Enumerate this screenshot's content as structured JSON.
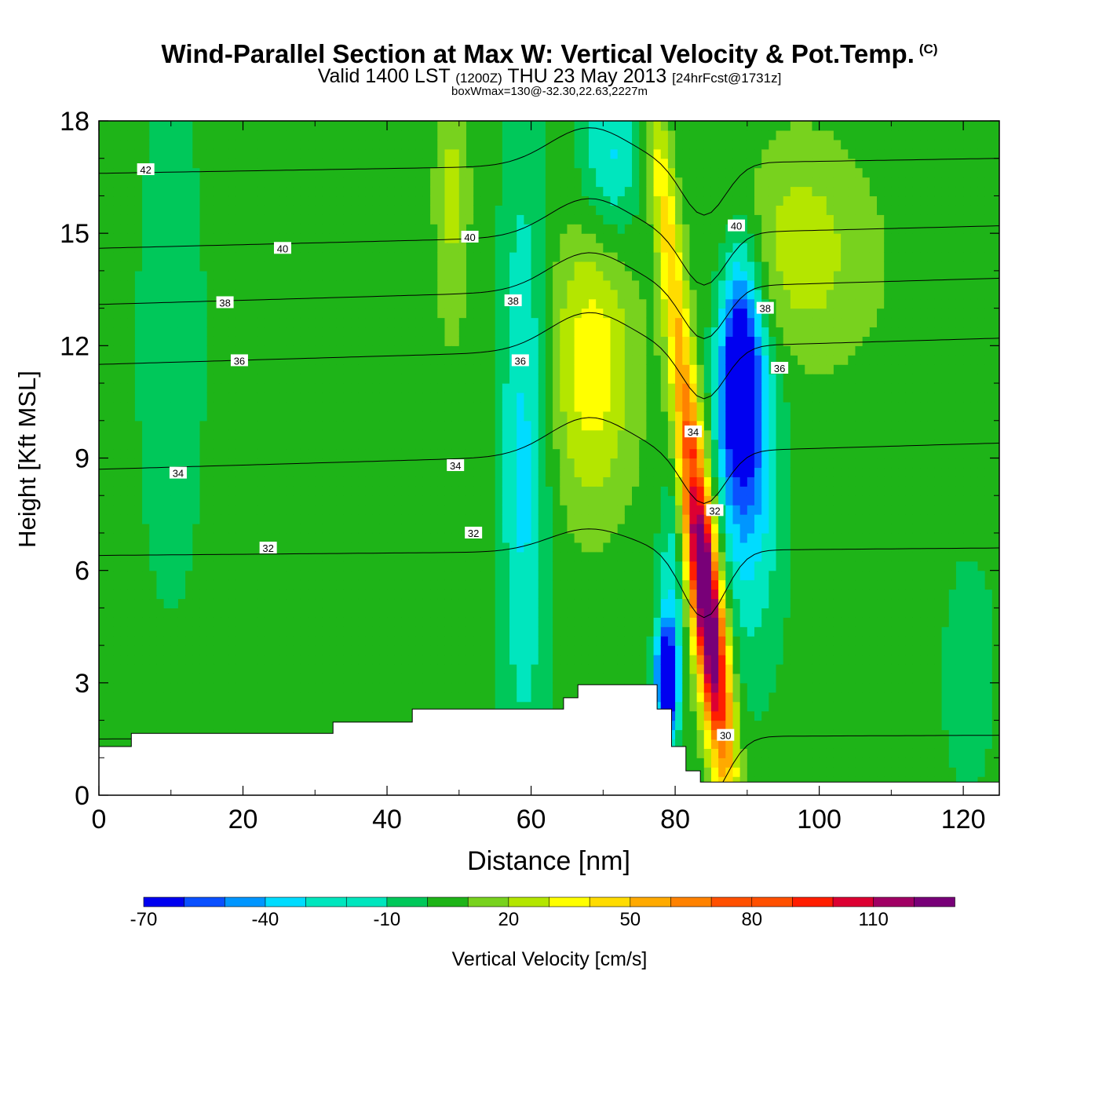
{
  "header": {
    "title": "Wind-Parallel Section at Max W: Vertical Velocity & Pot.Temp.",
    "copyright_mark": "(C)",
    "valid_prefix": "Valid 1400 LST",
    "valid_utc": "(1200Z)",
    "valid_date": "THU 23 May 2013",
    "forecast_info": "[24hrFcst@1731z]",
    "box_info": "boxWmax=130@-32.30,22.63,2227m"
  },
  "chart_data": {
    "type": "heatmap",
    "xlabel": "Distance [nm]",
    "ylabel": "Height [Kft MSL]",
    "xlim": [
      0,
      125
    ],
    "ylim": [
      0,
      18
    ],
    "x_ticks": [
      0,
      20,
      40,
      60,
      80,
      100,
      120
    ],
    "y_ticks": [
      0,
      3,
      6,
      9,
      12,
      15,
      18
    ],
    "colorbar": {
      "label": "Vertical Velocity [cm/s]",
      "levels": [
        -70,
        -60,
        -50,
        -40,
        -30,
        -20,
        -10,
        0,
        10,
        20,
        30,
        40,
        50,
        60,
        70,
        80,
        90,
        100,
        110,
        120,
        130
      ],
      "tick_labels": [
        "-70",
        "-40",
        "-10",
        "20",
        "50",
        "80",
        "110"
      ],
      "tick_values": [
        -70,
        -40,
        -10,
        20,
        50,
        80,
        110
      ],
      "colors": [
        "#0000f0",
        "#0a50ff",
        "#0096ff",
        "#00dcff",
        "#00e6be",
        "#00c85a",
        "#1eb418",
        "#78d21e",
        "#b4e600",
        "#ffff00",
        "#ffdc00",
        "#ffaa00",
        "#ff8200",
        "#ff5000",
        "#ff1e00",
        "#dc0032",
        "#a00064",
        "#780078"
      ]
    },
    "terrain_top_kft": [
      {
        "x": [
          0,
          4.5
        ],
        "h": 1.3
      },
      {
        "x": [
          4.5,
          32.5
        ],
        "h": 1.65
      },
      {
        "x": [
          32.5,
          43.5
        ],
        "h": 1.95
      },
      {
        "x": [
          43.5,
          64.5
        ],
        "h": 2.3
      },
      {
        "x": [
          64.5,
          66.5
        ],
        "h": 2.6
      },
      {
        "x": [
          66.5,
          77.5
        ],
        "h": 2.95
      },
      {
        "x": [
          77.5,
          79.5
        ],
        "h": 2.3
      },
      {
        "x": [
          79.5,
          81.5
        ],
        "h": 1.3
      },
      {
        "x": [
          81.5,
          83.5
        ],
        "h": 0.65
      },
      {
        "x": [
          83.5,
          125
        ],
        "h": 0.35
      }
    ],
    "w_features": [
      {
        "x": 84.5,
        "y": 5.5,
        "peak": 130
      },
      {
        "x": 89,
        "y": 11.5,
        "peak": -60
      },
      {
        "x": 78.5,
        "y": 2.8,
        "peak": -70
      },
      {
        "x": 68.5,
        "y": 11.5,
        "peak": 30
      }
    ],
    "theta_contours": [
      {
        "label": "30",
        "y_left": 1.5,
        "y_right": 1.6
      },
      {
        "label": "32",
        "y_left": 6.4,
        "y_right": 6.6
      },
      {
        "label": "34",
        "y_left": 8.7,
        "y_right": 9.4
      },
      {
        "label": "36",
        "y_left": 11.5,
        "y_right": 12.2
      },
      {
        "label": "38",
        "y_left": 13.1,
        "y_right": 13.8
      },
      {
        "label": "40",
        "y_left": 14.6,
        "y_right": 15.2
      },
      {
        "label": "42",
        "y_left": 16.6,
        "y_right": 17.0
      }
    ],
    "contour_labels": [
      {
        "text": "42",
        "x": 6.5,
        "y": 16.7
      },
      {
        "text": "40",
        "x": 25.5,
        "y": 14.6
      },
      {
        "text": "40",
        "x": 51.5,
        "y": 14.9
      },
      {
        "text": "40",
        "x": 88.5,
        "y": 15.2
      },
      {
        "text": "38",
        "x": 17.5,
        "y": 13.15
      },
      {
        "text": "38",
        "x": 57.5,
        "y": 13.2
      },
      {
        "text": "38",
        "x": 92.5,
        "y": 13.0
      },
      {
        "text": "36",
        "x": 19.5,
        "y": 11.6
      },
      {
        "text": "36",
        "x": 58.5,
        "y": 11.6
      },
      {
        "text": "36",
        "x": 94.5,
        "y": 11.4
      },
      {
        "text": "34",
        "x": 11,
        "y": 8.6
      },
      {
        "text": "34",
        "x": 49.5,
        "y": 8.8
      },
      {
        "text": "34",
        "x": 82.5,
        "y": 9.7
      },
      {
        "text": "32",
        "x": 23.5,
        "y": 6.6
      },
      {
        "text": "32",
        "x": 52,
        "y": 7.0
      },
      {
        "text": "32",
        "x": 85.5,
        "y": 7.6
      },
      {
        "text": "30",
        "x": 87,
        "y": 1.6
      }
    ]
  }
}
